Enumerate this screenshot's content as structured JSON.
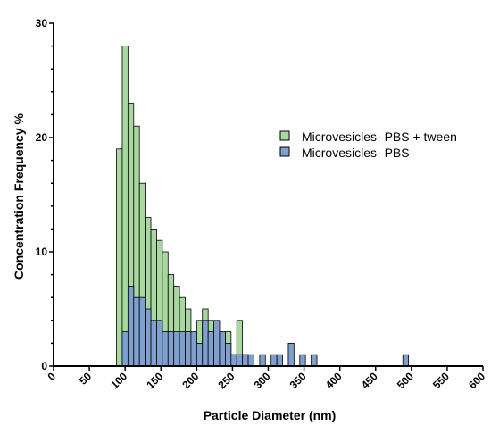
{
  "chart_data": {
    "type": "bar",
    "title": "",
    "xlabel": "Particle Diameter (nm)",
    "ylabel": "Concentration  Frequency %",
    "xlim": [
      0,
      600
    ],
    "ylim": [
      0,
      30
    ],
    "bin_width": 8,
    "x_ticks": [
      "0",
      "50",
      "100",
      "150",
      "200",
      "250",
      "300",
      "350",
      "400",
      "450",
      "500",
      "550",
      "600"
    ],
    "y_ticks": [
      "0",
      "10",
      "20",
      "30"
    ],
    "grid": false,
    "legend_position": "top-right",
    "series": [
      {
        "name": "Microvesicles- PBS + tween",
        "color": "#a8d8a0",
        "bin_starts": [
          88,
          96,
          104,
          112,
          120,
          128,
          136,
          144,
          152,
          160,
          168,
          176,
          184,
          192,
          200,
          208,
          216,
          224,
          232,
          240,
          248,
          256,
          264
        ],
        "values": [
          19,
          28,
          23,
          21,
          16,
          13,
          12,
          11,
          10,
          8,
          7,
          6,
          5,
          2,
          4,
          5,
          4,
          3,
          2,
          3,
          1,
          4,
          1
        ]
      },
      {
        "name": "Microvesicles- PBS",
        "color": "#7f9fcf",
        "bin_starts": [
          96,
          104,
          112,
          120,
          128,
          136,
          144,
          152,
          160,
          168,
          176,
          184,
          192,
          200,
          208,
          216,
          224,
          232,
          240,
          248,
          256,
          264,
          272,
          288,
          304,
          312,
          328,
          344,
          360,
          488
        ],
        "values": [
          3,
          7,
          6,
          6,
          5,
          4,
          4,
          3,
          3,
          3,
          3,
          3,
          3,
          2,
          4,
          3,
          4,
          3,
          2,
          1,
          1,
          1,
          1,
          1,
          1,
          1,
          2,
          1,
          1,
          1
        ]
      }
    ]
  }
}
